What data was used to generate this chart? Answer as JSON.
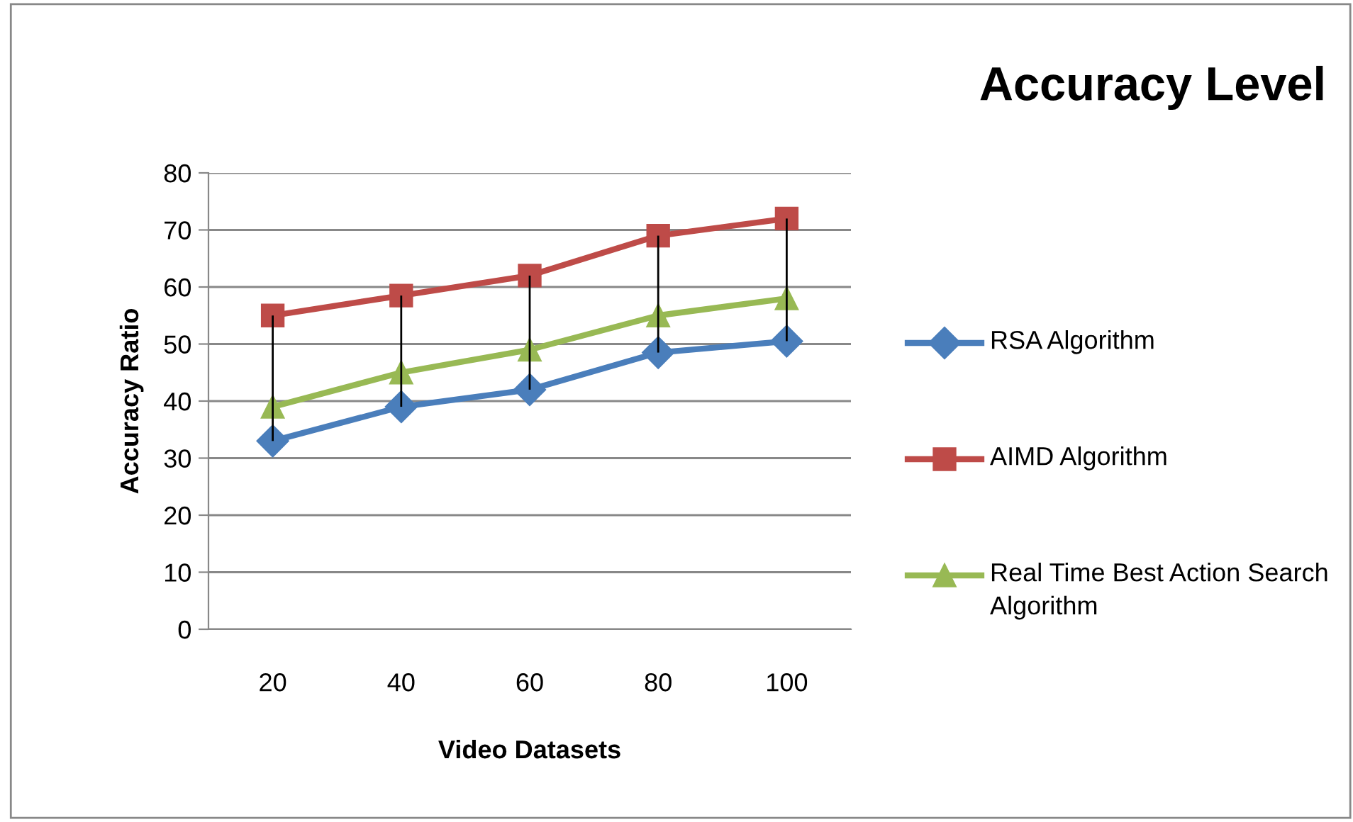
{
  "chart_data": {
    "type": "line",
    "title": "Accuracy Level",
    "xlabel": "Video Datasets",
    "ylabel": "Accuracy Ratio",
    "categories": [
      "20",
      "40",
      "60",
      "80",
      "100"
    ],
    "series": [
      {
        "name": "RSA Algorithm",
        "color": "#4a7ebb",
        "marker": "diamond",
        "values": [
          33,
          39,
          42,
          48.5,
          50.5
        ]
      },
      {
        "name": "AIMD Algorithm",
        "color": "#be4b48",
        "marker": "square",
        "values": [
          55,
          58.5,
          62,
          69,
          72
        ],
        "errors": [
          [
            33,
            55
          ],
          [
            39,
            58.5
          ],
          [
            42,
            62
          ],
          [
            48.5,
            69
          ],
          [
            50.5,
            72
          ]
        ]
      },
      {
        "name": "Real Time Best Action Search Algorithm",
        "color": "#98b954",
        "marker": "triangle",
        "values": [
          39,
          45,
          49,
          55,
          58
        ]
      }
    ],
    "ylim": [
      0,
      80
    ],
    "yticks": [
      0,
      10,
      20,
      30,
      40,
      50,
      60,
      70,
      80
    ],
    "grid": "y",
    "legend": "right"
  }
}
